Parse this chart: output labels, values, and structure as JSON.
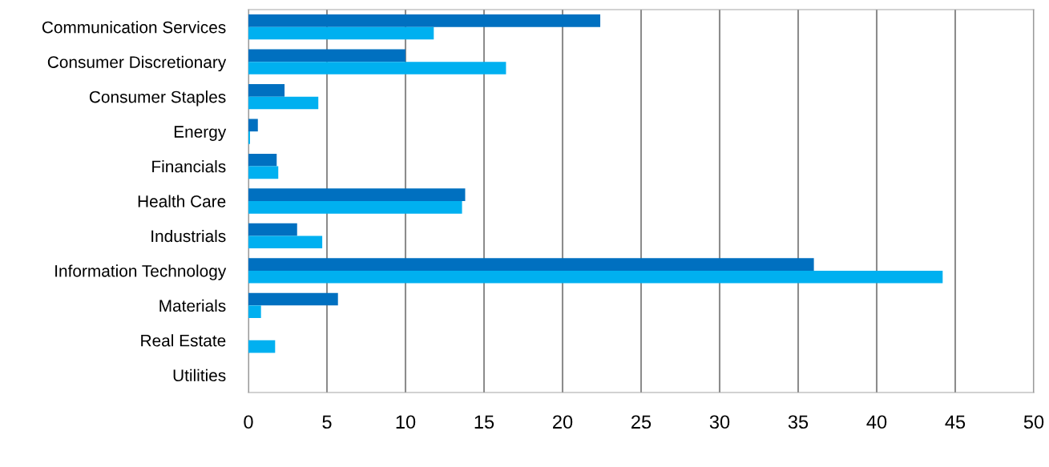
{
  "chart_data": {
    "type": "bar",
    "orientation": "horizontal",
    "categories": [
      "Communication Services",
      "Consumer Discretionary",
      "Consumer Staples",
      "Energy",
      "Financials",
      "Health Care",
      "Industrials",
      "Information Technology",
      "Materials",
      "Real Estate",
      "Utilities"
    ],
    "series": [
      {
        "color": "#0070c0",
        "values": [
          22.4,
          10.0,
          2.3,
          0.6,
          1.8,
          13.8,
          3.1,
          36.0,
          5.7,
          0,
          0
        ]
      },
      {
        "color": "#00b0f0",
        "values": [
          11.8,
          16.4,
          4.45,
          0.1,
          1.9,
          13.6,
          4.7,
          44.2,
          0.8,
          1.7,
          0
        ]
      }
    ],
    "xlim": [
      0,
      50
    ],
    "xticks": [
      0,
      5,
      10,
      15,
      20,
      25,
      30,
      35,
      40,
      45,
      50
    ],
    "grid": "x"
  }
}
